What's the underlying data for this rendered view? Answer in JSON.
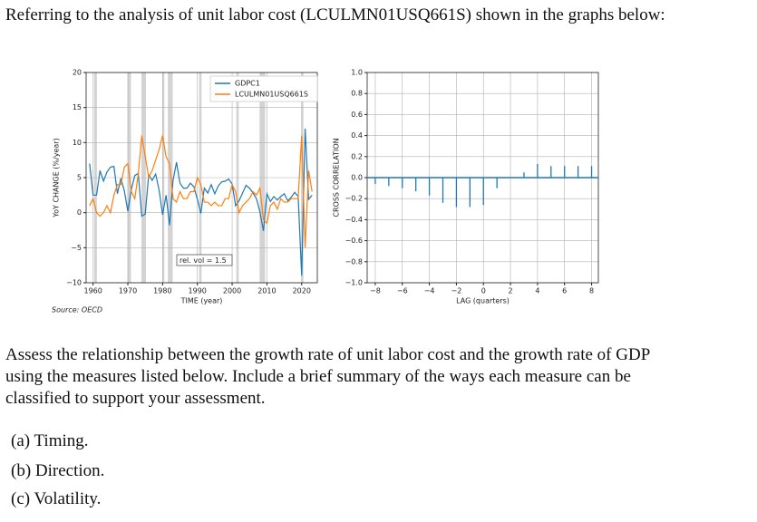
{
  "question": {
    "intro": "Referring to the analysis of unit labor cost (LCULMN01USQ661S) shown in the graphs below:",
    "body": "Assess the relationship between the growth rate of unit labor cost  and the growth rate of GDP using the measures listed below. Include a brief summary of the ways each measure can be classified to support your assessment.",
    "items": [
      "(a) Timing.",
      "(b) Direction.",
      "(c) Volatility."
    ]
  },
  "chart_data": [
    {
      "type": "line",
      "ylabel": "YoY CHANGE (%/year)",
      "xlabel": "TIME (year)",
      "source": "Source: OECD",
      "annotation": "rel. vol = 1.5",
      "xlim": [
        1958,
        2024.5
      ],
      "xticks": [
        1960,
        1970,
        1980,
        1990,
        2000,
        2010,
        2020
      ],
      "ylim": [
        -10,
        20
      ],
      "yticks": [
        {
          "value": -10,
          "label": "−10"
        },
        {
          "value": -5,
          "label": "−5"
        },
        0,
        5,
        10,
        15,
        20
      ],
      "grid": true,
      "legend": "upper center",
      "recessions": [
        [
          1960.3,
          1961.1
        ],
        [
          1969.9,
          1970.9
        ],
        [
          1973.9,
          1975.2
        ],
        [
          1980.0,
          1980.5
        ],
        [
          1981.5,
          1982.9
        ],
        [
          1990.5,
          1991.2
        ],
        [
          2001.2,
          2001.9
        ],
        [
          2007.9,
          2009.5
        ],
        [
          2020.0,
          2020.5
        ]
      ],
      "recession_color": "#d3d3d3",
      "x": [
        1959,
        1960,
        1961,
        1962,
        1963,
        1964,
        1965,
        1966,
        1967,
        1968,
        1969,
        1970,
        1971,
        1972,
        1973,
        1974,
        1975,
        1976,
        1977,
        1978,
        1979,
        1980,
        1981,
        1982,
        1983,
        1984,
        1985,
        1986,
        1987,
        1988,
        1989,
        1990,
        1991,
        1992,
        1993,
        1994,
        1995,
        1996,
        1997,
        1998,
        1999,
        2000,
        2001,
        2002,
        2003,
        2004,
        2005,
        2006,
        2007,
        2008,
        2009,
        2010,
        2011,
        2012,
        2013,
        2014,
        2015,
        2016,
        2017,
        2018,
        2019,
        2020,
        2021,
        2022,
        2023
      ],
      "series": [
        {
          "name": "GDPC1",
          "color": "#1f77b4",
          "values": [
            7,
            2.5,
            2.5,
            6,
            4.5,
            5.8,
            6.5,
            6.6,
            2.7,
            4.9,
            3.1,
            0.2,
            3.3,
            5.3,
            5.6,
            -0.5,
            -0.2,
            5.4,
            4.6,
            5.5,
            3.2,
            -0.3,
            2.5,
            -1.8,
            4.6,
            7.2,
            4.2,
            3.5,
            3.5,
            4.2,
            3.7,
            1.9,
            -0.1,
            3.5,
            2.8,
            4,
            2.7,
            3.8,
            4.4,
            4.5,
            4.8,
            4.1,
            1,
            1.7,
            2.8,
            3.9,
            3.5,
            2.8,
            2,
            0.1,
            -2.6,
            2.7,
            1.6,
            2.3,
            1.8,
            2.3,
            2.7,
            1.7,
            2.2,
            2.9,
            2.3,
            -9,
            12,
            1.9,
            2.5
          ]
        },
        {
          "name": "LCULMN01USQ661S",
          "color": "#ff7f0e",
          "values": [
            1,
            2,
            0,
            -0.5,
            0,
            1,
            0,
            2.5,
            4,
            4,
            6.5,
            7,
            3,
            2,
            5.5,
            11,
            8,
            5,
            6,
            7.5,
            9,
            11,
            8,
            7,
            2,
            1.5,
            3,
            2,
            2,
            3,
            3,
            5,
            4,
            1.5,
            1.5,
            1,
            1.5,
            1,
            1,
            2,
            2,
            4,
            3,
            0,
            1,
            1.5,
            2,
            3,
            2.5,
            3.5,
            -1,
            -1.5,
            1,
            1.5,
            0.5,
            2,
            1.5,
            1.5,
            2,
            2,
            2,
            11,
            -5,
            6,
            3
          ]
        }
      ]
    },
    {
      "type": "stem",
      "ylabel": "CROSS CORRELATION",
      "xlabel": "LAG (quarters)",
      "color": "#1f77b4",
      "grid": true,
      "xlim": [
        -8.6,
        8.5
      ],
      "xticks": [
        {
          "value": -8,
          "label": "−8"
        },
        {
          "value": -6,
          "label": "−6"
        },
        {
          "value": -4,
          "label": "−4"
        },
        {
          "value": -2,
          "label": "−2"
        },
        0,
        2,
        4,
        6,
        8
      ],
      "ylim": [
        -1,
        1
      ],
      "yticks": [
        {
          "value": -1,
          "label": "−1.0"
        },
        {
          "value": -0.8,
          "label": "−0.8"
        },
        {
          "value": -0.6,
          "label": "−0.6"
        },
        {
          "value": -0.4,
          "label": "−0.4"
        },
        {
          "value": -0.2,
          "label": "−0.2"
        },
        {
          "value": 0,
          "label": "0.0"
        },
        {
          "value": 0.2,
          "label": "0.2"
        },
        {
          "value": 0.4,
          "label": "0.4"
        },
        {
          "value": 0.6,
          "label": "0.6"
        },
        {
          "value": 0.8,
          "label": "0.8"
        },
        {
          "value": 1,
          "label": "1.0"
        }
      ],
      "x": [
        -8,
        -7,
        -6,
        -5,
        -4,
        -3,
        -2,
        -1,
        0,
        1,
        2,
        3,
        4,
        5,
        6,
        7,
        8
      ],
      "values": [
        -0.06,
        -0.08,
        -0.1,
        -0.13,
        -0.17,
        -0.24,
        -0.28,
        -0.28,
        -0.26,
        -0.1,
        0,
        0.05,
        0.13,
        0.11,
        0.11,
        0.11,
        0.11
      ]
    }
  ]
}
